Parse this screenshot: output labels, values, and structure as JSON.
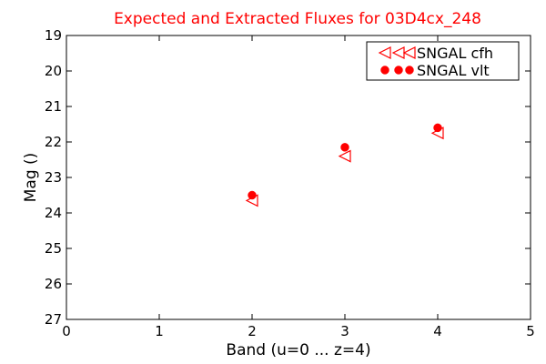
{
  "chart_data": {
    "type": "scatter",
    "title": "Expected and Extracted Fluxes for 03D4cx_248",
    "xlabel": "Band (u=0 ... z=4)",
    "ylabel": "Mag ()",
    "xlim": [
      0,
      5
    ],
    "ylim": [
      27,
      19
    ],
    "y_inverted": true,
    "x_ticks": [
      0,
      1,
      2,
      3,
      4,
      5
    ],
    "y_ticks": [
      19,
      20,
      21,
      22,
      23,
      24,
      25,
      26,
      27
    ],
    "grid": false,
    "legend_position": "top-right",
    "title_color": "#ff0000",
    "series": [
      {
        "name": "SNGAL cfh",
        "marker": "triangle-left-open",
        "color": "#ff0000",
        "points": [
          {
            "x": 2.0,
            "y": 23.65
          },
          {
            "x": 3.0,
            "y": 22.4
          },
          {
            "x": 4.0,
            "y": 21.75
          }
        ]
      },
      {
        "name": "SNGAL vlt",
        "marker": "circle-filled",
        "color": "#ff0000",
        "points": [
          {
            "x": 2.0,
            "y": 23.5
          },
          {
            "x": 3.0,
            "y": 22.15
          },
          {
            "x": 4.0,
            "y": 21.6
          }
        ]
      }
    ]
  }
}
